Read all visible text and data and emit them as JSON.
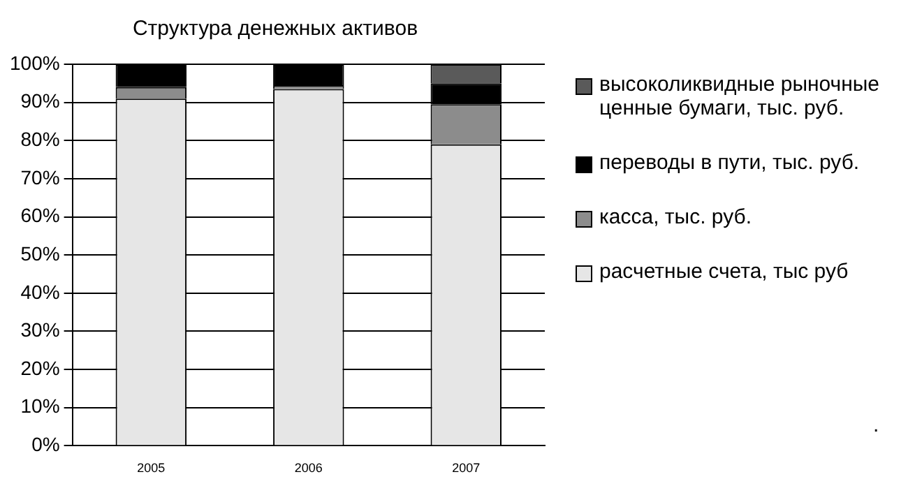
{
  "chart_data": {
    "type": "bar",
    "title": "Структура денежных активов",
    "categories": [
      "2005",
      "2006",
      "2007"
    ],
    "stacked": true,
    "series": [
      {
        "name": "расчетные счета, тыс руб",
        "color": "#e6e6e6",
        "values": [
          91,
          93.5,
          79
        ]
      },
      {
        "name": "касса, тыс. руб.",
        "color": "#8c8c8c",
        "values": [
          3,
          1,
          10.5
        ]
      },
      {
        "name": "переводы в пути, тыс. руб.",
        "color": "#000000",
        "values": [
          6,
          5.5,
          5.5
        ]
      },
      {
        "name": "высоколиквидные рыночные   ценные бумаги, тыс. руб.",
        "color": "#5a5a5a",
        "values": [
          0,
          0,
          5
        ]
      }
    ],
    "ylim": [
      0,
      100
    ],
    "yticks": [
      {
        "value": 0,
        "label": "0%"
      },
      {
        "value": 10,
        "label": "10%"
      },
      {
        "value": 20,
        "label": "20%"
      },
      {
        "value": 30,
        "label": "30%"
      },
      {
        "value": 40,
        "label": "40%"
      },
      {
        "value": 50,
        "label": "50%"
      },
      {
        "value": 60,
        "label": "60%"
      },
      {
        "value": 70,
        "label": "70%"
      },
      {
        "value": 80,
        "label": "80%"
      },
      {
        "value": 90,
        "label": "90%"
      },
      {
        "value": 100,
        "label": "100%"
      }
    ],
    "grid": "y",
    "legend": "right",
    "annotations": [
      "."
    ]
  }
}
